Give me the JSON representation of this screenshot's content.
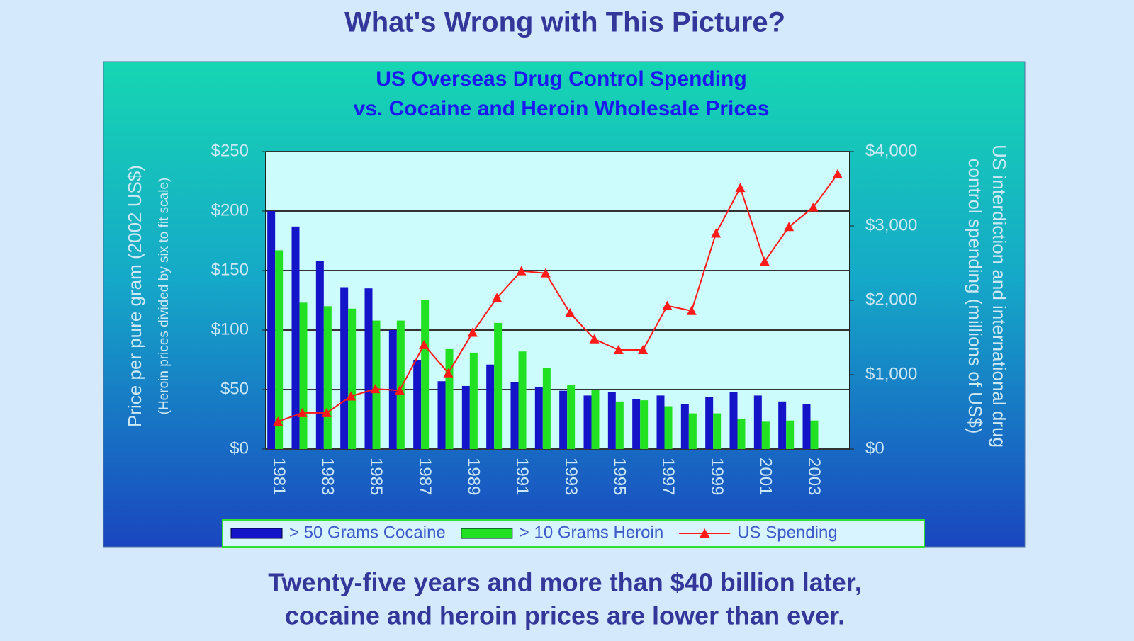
{
  "heading": "What's Wrong with This Picture?",
  "caption": [
    "Twenty-five years and more than $40 billion later,",
    "cocaine and heroin prices are lower than ever."
  ],
  "chart_data": {
    "type": "bar-line",
    "title": "US Overseas Drug Control Spending",
    "subtitle": "vs. Cocaine and Heroin Wholesale Prices",
    "ylabel": "Price per pure gram (2002 US$)",
    "ylabel_note": "(Heroin prices divided by six to fit scale)",
    "y2label": [
      "US interdiction and international drug",
      "control spending (millions of US$)"
    ],
    "categories": [
      "1981",
      null,
      "1983",
      null,
      "1985",
      null,
      "1987",
      null,
      "1989",
      null,
      "1991",
      null,
      "1993",
      null,
      "1995",
      null,
      "1997",
      null,
      "1999",
      null,
      "2001",
      null,
      "2003",
      null
    ],
    "series": [
      {
        "name": "> 50 Grams Cocaine",
        "color": "#1414c8",
        "kind": "bar",
        "values": [
          200,
          187,
          158,
          136,
          135,
          100,
          75,
          57,
          53,
          71,
          56,
          52,
          49,
          45,
          48,
          42,
          45,
          38,
          44,
          48,
          45,
          40,
          38,
          null
        ]
      },
      {
        "name": "> 10 Grams Heroin",
        "color": "#22e022",
        "kind": "bar",
        "values": [
          167,
          123,
          120,
          118,
          108,
          108,
          125,
          84,
          81,
          106,
          82,
          68,
          54,
          50,
          40,
          41,
          36,
          30,
          30,
          25,
          23,
          24,
          24,
          null
        ]
      },
      {
        "name": "US Spending",
        "color": "#ff1a1a",
        "kind": "line",
        "axis": "y2",
        "values": [
          370,
          487,
          487,
          710,
          808,
          788,
          1401,
          1022,
          1567,
          2034,
          2394,
          2365,
          1830,
          1479,
          1333,
          1333,
          1927,
          1859,
          2900,
          3513,
          2521,
          2988,
          3251,
          3698
        ]
      }
    ],
    "ylim": [
      0,
      250
    ],
    "yticks": [
      {
        "value": 0,
        "label": "$0"
      },
      {
        "value": 50,
        "label": "$50"
      },
      {
        "value": 100,
        "label": "$100"
      },
      {
        "value": 150,
        "label": "$150"
      },
      {
        "value": 200,
        "label": "$200"
      },
      {
        "value": 250,
        "label": "$250"
      }
    ],
    "y2lim": [
      0,
      4000
    ],
    "y2ticks": [
      {
        "value": 0,
        "label": "$0"
      },
      {
        "value": 1000,
        "label": "$1,000"
      },
      {
        "value": 2000,
        "label": "$2,000"
      },
      {
        "value": 3000,
        "label": "$3,000"
      },
      {
        "value": 4000,
        "label": "$4,000"
      }
    ],
    "grid": true,
    "legend": "bottom"
  }
}
